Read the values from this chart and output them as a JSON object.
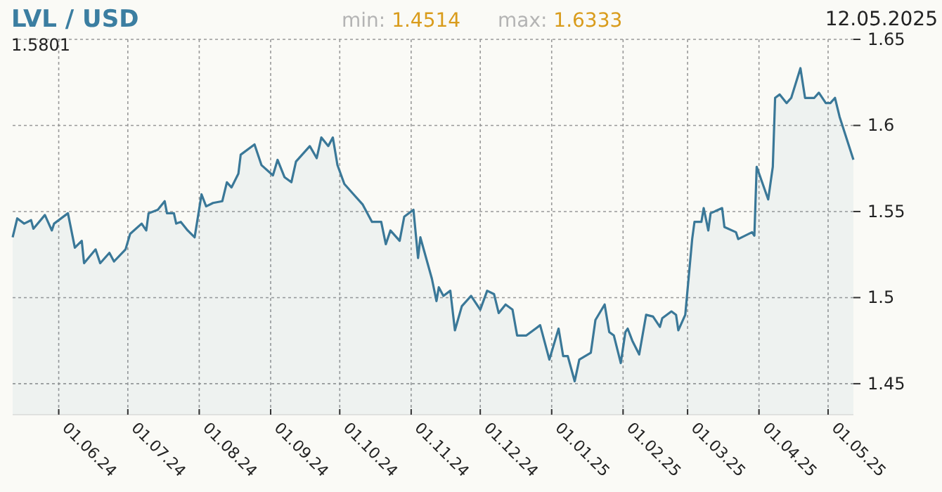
{
  "chart_data": {
    "type": "area",
    "title": "LVL / USD",
    "annotations": [
      "1.5801",
      "min: 1.4514",
      "max: 1.6333",
      "12.05.2025"
    ],
    "xlim": [
      "2024-05-12",
      "2025-05-12"
    ],
    "xticks": [
      {
        "value": "2024-06-01",
        "label": "01.06.24"
      },
      {
        "value": "2024-07-01",
        "label": "01.07.24"
      },
      {
        "value": "2024-08-01",
        "label": "01.08.24"
      },
      {
        "value": "2024-09-01",
        "label": "01.09.24"
      },
      {
        "value": "2024-10-01",
        "label": "01.10.24"
      },
      {
        "value": "2024-11-01",
        "label": "01.11.24"
      },
      {
        "value": "2024-12-01",
        "label": "01.12.24"
      },
      {
        "value": "2025-01-01",
        "label": "01.01.25"
      },
      {
        "value": "2025-02-01",
        "label": "01.02.25"
      },
      {
        "value": "2025-03-01",
        "label": "01.03.25"
      },
      {
        "value": "2025-04-01",
        "label": "01.04.25"
      },
      {
        "value": "2025-05-01",
        "label": "01.05.25"
      }
    ],
    "ylim": [
      1.432,
      1.65
    ],
    "yticks": [
      1.45,
      1.5,
      1.55,
      1.6,
      1.65
    ],
    "grid": true,
    "x": [
      "2024-05-12",
      "2024-05-14",
      "2024-05-17",
      "2024-05-20",
      "2024-05-21",
      "2024-05-26",
      "2024-05-29",
      "2024-05-30",
      "2024-06-05",
      "2024-06-08",
      "2024-06-11",
      "2024-06-12",
      "2024-06-17",
      "2024-06-19",
      "2024-06-23",
      "2024-06-25",
      "2024-06-30",
      "2024-07-02",
      "2024-07-07",
      "2024-07-09",
      "2024-07-10",
      "2024-07-14",
      "2024-07-17",
      "2024-07-18",
      "2024-07-21",
      "2024-07-22",
      "2024-07-24",
      "2024-07-27",
      "2024-07-30",
      "2024-08-02",
      "2024-08-04",
      "2024-08-07",
      "2024-08-11",
      "2024-08-13",
      "2024-08-15",
      "2024-08-18",
      "2024-08-19",
      "2024-08-25",
      "2024-08-28",
      "2024-09-02",
      "2024-09-04",
      "2024-09-07",
      "2024-09-10",
      "2024-09-12",
      "2024-09-18",
      "2024-09-21",
      "2024-09-23",
      "2024-09-26",
      "2024-09-28",
      "2024-09-30",
      "2024-10-03",
      "2024-10-07",
      "2024-10-11",
      "2024-10-15",
      "2024-10-19",
      "2024-10-21",
      "2024-10-23",
      "2024-10-27",
      "2024-10-29",
      "2024-11-02",
      "2024-11-04",
      "2024-11-05",
      "2024-11-10",
      "2024-11-12",
      "2024-11-13",
      "2024-11-15",
      "2024-11-18",
      "2024-11-20",
      "2024-11-23",
      "2024-11-27",
      "2024-12-01",
      "2024-12-04",
      "2024-12-07",
      "2024-12-09",
      "2024-12-12",
      "2024-12-15",
      "2024-12-17",
      "2024-12-21",
      "2024-12-27",
      "2024-12-31",
      "2025-01-04",
      "2025-01-06",
      "2025-01-08",
      "2025-01-11",
      "2025-01-13",
      "2025-01-18",
      "2025-01-20",
      "2025-01-24",
      "2025-01-26",
      "2025-01-28",
      "2025-01-31",
      "2025-02-02",
      "2025-02-03",
      "2025-02-05",
      "2025-02-08",
      "2025-02-11",
      "2025-02-14",
      "2025-02-17",
      "2025-02-18",
      "2025-02-22",
      "2025-02-24",
      "2025-02-25",
      "2025-02-28",
      "2025-03-03",
      "2025-03-04",
      "2025-03-07",
      "2025-03-08",
      "2025-03-10",
      "2025-03-11",
      "2025-03-16",
      "2025-03-17",
      "2025-03-22",
      "2025-03-23",
      "2025-03-29",
      "2025-03-30",
      "2025-03-31",
      "2025-04-05",
      "2025-04-07",
      "2025-04-08",
      "2025-04-10",
      "2025-04-13",
      "2025-04-15",
      "2025-04-19",
      "2025-04-21",
      "2025-04-25",
      "2025-04-27",
      "2025-04-30",
      "2025-05-02",
      "2025-05-04",
      "2025-05-06",
      "2025-05-12"
    ],
    "series": [
      {
        "color": "#3a7898",
        "values": [
          1.535,
          1.546,
          1.543,
          1.545,
          1.54,
          1.548,
          1.539,
          1.543,
          1.549,
          1.529,
          1.533,
          1.52,
          1.528,
          1.52,
          1.526,
          1.521,
          1.528,
          1.537,
          1.543,
          1.539,
          1.549,
          1.551,
          1.556,
          1.549,
          1.549,
          1.543,
          1.544,
          1.539,
          1.535,
          1.56,
          1.553,
          1.555,
          1.556,
          1.567,
          1.564,
          1.572,
          1.583,
          1.589,
          1.577,
          1.571,
          1.58,
          1.57,
          1.567,
          1.579,
          1.588,
          1.581,
          1.593,
          1.588,
          1.593,
          1.577,
          1.566,
          1.56,
          1.554,
          1.544,
          1.544,
          1.531,
          1.539,
          1.533,
          1.547,
          1.551,
          1.523,
          1.535,
          1.511,
          1.498,
          1.506,
          1.501,
          1.504,
          1.481,
          1.495,
          1.501,
          1.493,
          1.504,
          1.502,
          1.491,
          1.496,
          1.493,
          1.478,
          1.478,
          1.484,
          1.464,
          1.482,
          1.466,
          1.466,
          1.4514,
          1.464,
          1.468,
          1.487,
          1.496,
          1.48,
          1.478,
          1.462,
          1.48,
          1.482,
          1.475,
          1.467,
          1.49,
          1.489,
          1.483,
          1.488,
          1.492,
          1.49,
          1.481,
          1.49,
          1.534,
          1.544,
          1.544,
          1.552,
          1.539,
          1.549,
          1.552,
          1.541,
          1.538,
          1.534,
          1.538,
          1.536,
          1.576,
          1.557,
          1.576,
          1.616,
          1.618,
          1.613,
          1.616,
          1.6333,
          1.616,
          1.616,
          1.619,
          1.613,
          1.613,
          1.616,
          1.605,
          1.5801
        ]
      }
    ]
  }
}
